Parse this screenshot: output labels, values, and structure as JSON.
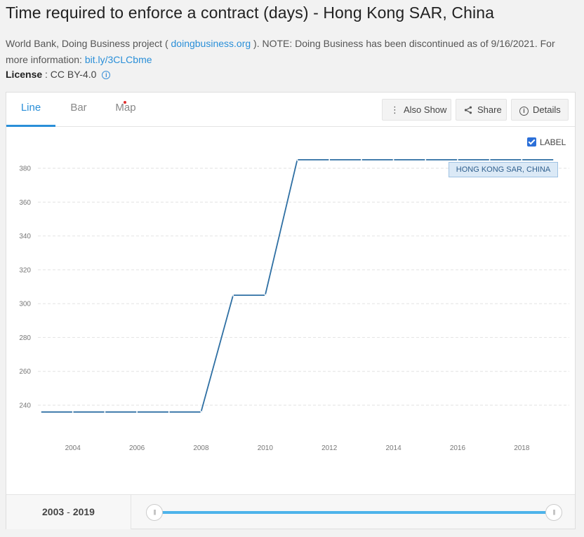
{
  "header": {
    "title": "Time required to enforce a contract (days) - Hong Kong SAR, China",
    "source_prefix": "World Bank, Doing Business project ( ",
    "source_link": "doingbusiness.org",
    "source_suffix": " ). NOTE: Doing Business has been discontinued as of 9/16/2021. For more information: ",
    "info_link": "bit.ly/3CLCbme",
    "license_label": "License",
    "license_value": " : CC BY-4.0"
  },
  "tabs": [
    {
      "label": "Line",
      "active": true
    },
    {
      "label": "Bar",
      "active": false
    },
    {
      "label": "Map",
      "active": false
    }
  ],
  "actions": {
    "also_show": "Also Show",
    "share": "Share",
    "details": "Details"
  },
  "label_toggle": {
    "text": "LABEL",
    "checked": true
  },
  "series_tag": "HONG KONG SAR, CHINA",
  "range": {
    "start": "2003",
    "sep": "-",
    "end": "2019"
  },
  "colors": {
    "line": "#2e6fa3",
    "accent": "#2a8fd8",
    "slider": "#4db3ea"
  },
  "chart_data": {
    "type": "line",
    "x": [
      2003,
      2004,
      2005,
      2006,
      2007,
      2008,
      2009,
      2010,
      2011,
      2012,
      2013,
      2014,
      2015,
      2016,
      2017,
      2018,
      2019
    ],
    "series": [
      {
        "name": "HONG KONG SAR, CHINA",
        "values": [
          236,
          236,
          236,
          236,
          236,
          236,
          305,
          305,
          385,
          385,
          385,
          385,
          385,
          385,
          385,
          385,
          385
        ]
      }
    ],
    "x_ticks": [
      2004,
      2006,
      2008,
      2010,
      2012,
      2014,
      2016,
      2018
    ],
    "y_ticks": [
      240,
      260,
      280,
      300,
      320,
      340,
      360,
      380
    ],
    "xlim": [
      2003,
      2019
    ],
    "ylim": [
      230,
      390
    ],
    "grid": true,
    "title": "",
    "xlabel": "",
    "ylabel": ""
  }
}
